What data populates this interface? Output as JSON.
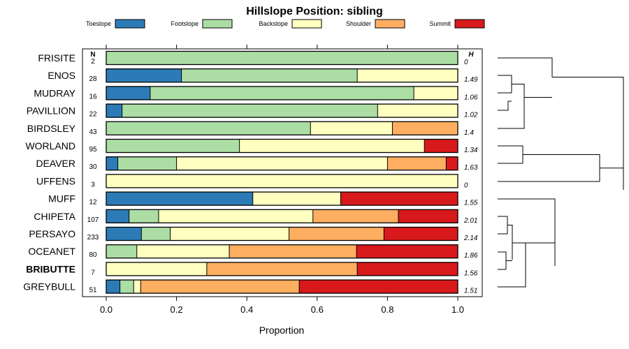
{
  "chart_data": {
    "type": "bar",
    "orientation": "horizontal",
    "stacked": true,
    "title": "Hillslope Position: sibling",
    "xlabel": "Proportion",
    "ylabel": "",
    "xlim": [
      0,
      1
    ],
    "xticks": [
      "0.0",
      "0.2",
      "0.4",
      "0.6",
      "0.8",
      "1.0"
    ],
    "n_header": "N",
    "h_header": "H",
    "legend": [
      {
        "name": "Toeslope",
        "color": "#2c7bb6"
      },
      {
        "name": "Footslope",
        "color": "#abdda4"
      },
      {
        "name": "Backslope",
        "color": "#ffffbf"
      },
      {
        "name": "Shoulder",
        "color": "#fdae61"
      },
      {
        "name": "Summit",
        "color": "#d7191c"
      }
    ],
    "rows": [
      {
        "name": "FRISITE",
        "n": "2",
        "h": "0",
        "bold": false,
        "values": [
          0,
          1.0,
          0,
          0,
          0
        ]
      },
      {
        "name": "ENOS",
        "n": "28",
        "h": "1.49",
        "bold": false,
        "values": [
          0.214,
          0.5,
          0.286,
          0,
          0
        ]
      },
      {
        "name": "MUDRAY",
        "n": "16",
        "h": "1.06",
        "bold": false,
        "values": [
          0.125,
          0.75,
          0.125,
          0,
          0
        ]
      },
      {
        "name": "PAVILLION",
        "n": "22",
        "h": "1.02",
        "bold": false,
        "values": [
          0.045,
          0.727,
          0.228,
          0,
          0
        ]
      },
      {
        "name": "BIRDSLEY",
        "n": "43",
        "h": "1.4",
        "bold": false,
        "values": [
          0,
          0.581,
          0.233,
          0.186,
          0
        ]
      },
      {
        "name": "WORLAND",
        "n": "95",
        "h": "1.34",
        "bold": false,
        "values": [
          0,
          0.379,
          0.526,
          0,
          0.095
        ]
      },
      {
        "name": "DEAVER",
        "n": "30",
        "h": "1.63",
        "bold": false,
        "values": [
          0.033,
          0.167,
          0.6,
          0.167,
          0.033
        ]
      },
      {
        "name": "UFFENS",
        "n": "3",
        "h": "0",
        "bold": false,
        "values": [
          0,
          0,
          1.0,
          0,
          0
        ]
      },
      {
        "name": "MUFF",
        "n": "12",
        "h": "1.55",
        "bold": false,
        "values": [
          0.417,
          0,
          0.25,
          0,
          0.333
        ]
      },
      {
        "name": "CHIPETA",
        "n": "107",
        "h": "2.01",
        "bold": false,
        "values": [
          0.065,
          0.084,
          0.439,
          0.243,
          0.169
        ]
      },
      {
        "name": "PERSAYO",
        "n": "233",
        "h": "2.14",
        "bold": false,
        "values": [
          0.1,
          0.082,
          0.338,
          0.27,
          0.21
        ]
      },
      {
        "name": "OCEANET",
        "n": "80",
        "h": "1.86",
        "bold": false,
        "values": [
          0,
          0.087,
          0.263,
          0.362,
          0.288
        ]
      },
      {
        "name": "BRIBUTTE",
        "n": "7",
        "h": "1.56",
        "bold": true,
        "values": [
          0,
          0,
          0.286,
          0.428,
          0.286
        ]
      },
      {
        "name": "GREYBULL",
        "n": "51",
        "h": "1.51",
        "bold": false,
        "values": [
          0.039,
          0.039,
          0.02,
          0.451,
          0.451
        ]
      }
    ]
  }
}
